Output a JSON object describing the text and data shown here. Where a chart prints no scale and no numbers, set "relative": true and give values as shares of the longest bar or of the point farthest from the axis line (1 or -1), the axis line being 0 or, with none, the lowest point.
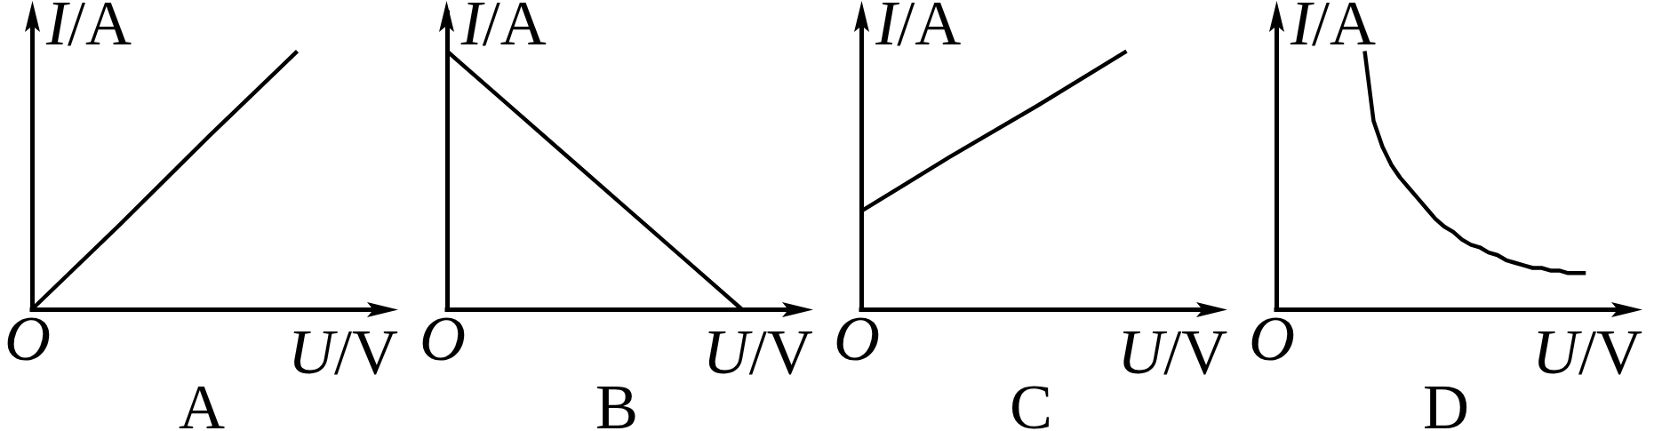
{
  "chart_data": [
    {
      "type": "line",
      "title": "A",
      "xlabel": "U/V",
      "ylabel": "I/A",
      "annotations": [
        "O"
      ],
      "relative": true,
      "categories": [
        null,
        null,
        null,
        null,
        null
      ],
      "values": [
        0,
        0.33,
        0.67,
        1,
        null
      ],
      "color": "#000000"
    },
    {
      "type": "line",
      "title": "B",
      "xlabel": "U/V",
      "ylabel": "I/A",
      "annotations": [
        "O"
      ],
      "relative": true,
      "categories": [
        null,
        null,
        null,
        null,
        null,
        null,
        null
      ],
      "values": [
        1,
        0.8,
        0.6,
        0.4,
        0.2,
        0,
        null
      ],
      "color": "#000000"
    },
    {
      "type": "line",
      "title": "C",
      "xlabel": "U/V",
      "ylabel": "I/A",
      "annotations": [
        "O"
      ],
      "relative": true,
      "categories": [
        null,
        null,
        null,
        null,
        null
      ],
      "values": [
        0.38,
        0.59,
        0.79,
        1,
        null
      ],
      "color": "#000000"
    },
    {
      "type": "line",
      "title": "D",
      "xlabel": "U/V",
      "ylabel": "I/A",
      "annotations": [
        "O"
      ],
      "relative": true,
      "categories": [
        null,
        null,
        null,
        null,
        null,
        null,
        null,
        null,
        null,
        null,
        null,
        null,
        null,
        null,
        null,
        null,
        null,
        null,
        null,
        null,
        null,
        null,
        null,
        null,
        null,
        null,
        null,
        null,
        null,
        null,
        null,
        null,
        null,
        null,
        null,
        null,
        null,
        null,
        null,
        null,
        null
      ],
      "values": [
        null,
        null,
        null,
        null,
        null,
        null,
        null,
        null,
        null,
        null,
        1,
        0.73,
        0.63,
        0.56,
        0.51,
        0.47,
        0.43,
        0.39,
        0.35,
        0.32,
        0.3,
        0.27,
        0.25,
        0.24,
        0.22,
        0.21,
        0.19,
        0.18,
        0.17,
        0.16,
        0.16,
        0.15,
        0.15,
        0.14,
        0.14,
        0.14,
        null,
        null,
        null,
        null,
        null
      ],
      "color": "#000000"
    }
  ]
}
